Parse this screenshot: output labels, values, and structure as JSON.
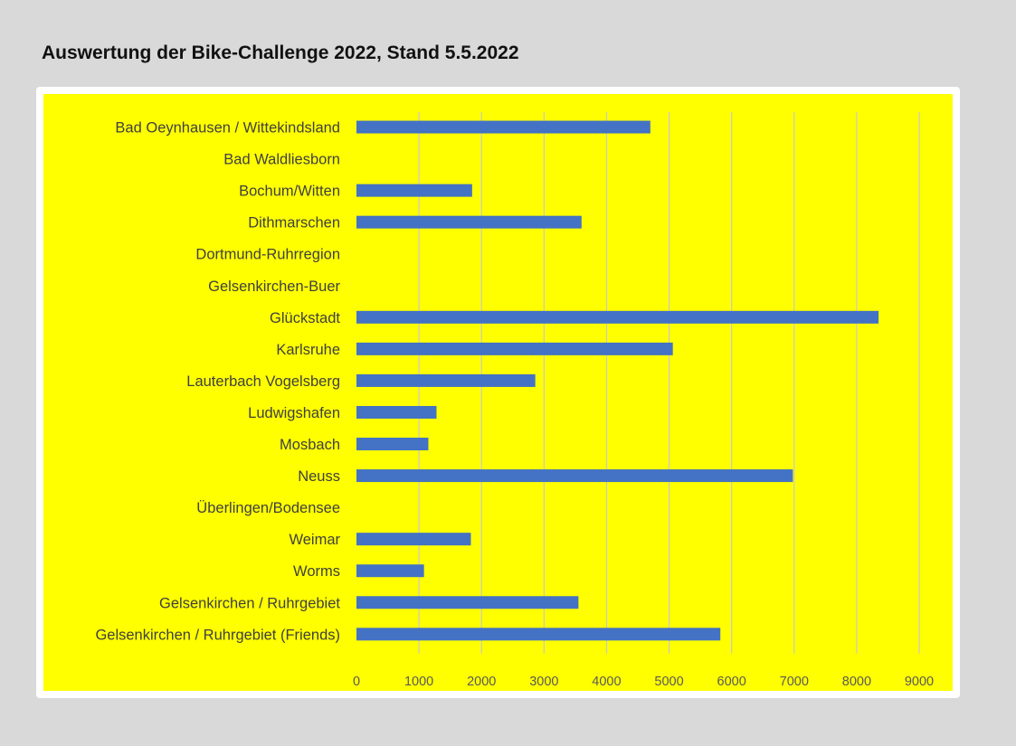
{
  "page": {
    "title": "Auswertung der Bike-Challenge 2022, Stand 5.5.2022"
  },
  "colors": {
    "background": "#d9d9d9",
    "plot_background": "#ffff00",
    "bar": "#4472c4",
    "gridline": "#c8c8c8",
    "frame": "#ffffff"
  },
  "chart_data": {
    "type": "bar",
    "orientation": "horizontal",
    "categories": [
      "Bad Oeynhausen / Wittekindsland",
      "Bad Waldliesborn",
      "Bochum/Witten",
      "Dithmarschen",
      "Dortmund-Ruhrregion",
      "Gelsenkirchen-Buer",
      "Glückstadt",
      "Karlsruhe",
      "Lauterbach Vogelsberg",
      "Ludwigshafen",
      "Mosbach",
      "Neuss",
      "Überlingen/Bodensee",
      "Weimar",
      "Worms",
      "Gelsenkirchen / Ruhrgebiet",
      "Gelsenkirchen / Ruhrgebiet (Friends)"
    ],
    "values": [
      4700,
      0,
      1850,
      3600,
      0,
      0,
      8350,
      5060,
      2860,
      1280,
      1150,
      6980,
      0,
      1830,
      1080,
      3550,
      5820
    ],
    "xlim": [
      0,
      9000
    ],
    "xticks": [
      "0",
      "1000",
      "2000",
      "3000",
      "4000",
      "5000",
      "6000",
      "7000",
      "8000",
      "9000"
    ],
    "grid": true,
    "legend": "none",
    "title": "",
    "xlabel": "",
    "ylabel": ""
  }
}
